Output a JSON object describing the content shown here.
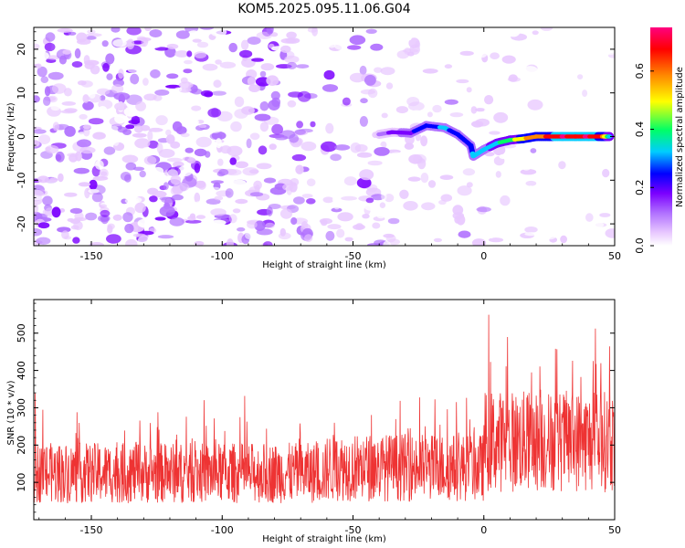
{
  "figure": {
    "title": "KOM5.2025.095.11.06.G04"
  },
  "colors": {
    "snr_line": "#ee3333",
    "frame": "#000000",
    "background": "#ffffff"
  },
  "chart_data": [
    {
      "type": "heatmap",
      "name": "spectrogram",
      "xlabel": "Height of straight line (km)",
      "ylabel": "Frequency (Hz)",
      "xlim": [
        -172,
        50
      ],
      "ylim": [
        -25,
        25
      ],
      "x_ticks": [
        -150,
        -100,
        -50,
        0,
        50
      ],
      "y_ticks": [
        -20,
        -10,
        0,
        10,
        20
      ],
      "colorbar": {
        "label": "Normalized spectral amplitude",
        "range": [
          0,
          0.75
        ],
        "ticks": [
          0.0,
          0.2,
          0.4,
          0.6
        ],
        "colormap": [
          "#ffffff",
          "#e8c8ff",
          "#b070ff",
          "#7b00ff",
          "#0000ff",
          "#00ccff",
          "#00ff66",
          "#ffff00",
          "#ff8800",
          "#ff0000",
          "#ff0080"
        ]
      },
      "feature": {
        "description_free": false,
        "trace": [
          [
            -40,
            0.5
          ],
          [
            -35,
            1.0
          ],
          [
            -28,
            0.8
          ],
          [
            -22,
            2.5
          ],
          [
            -15,
            2.0
          ],
          [
            -10,
            0.5
          ],
          [
            -5,
            -2.0
          ],
          [
            -4,
            -4.5
          ],
          [
            0,
            -3.0
          ],
          [
            5,
            -1.5
          ],
          [
            10,
            -0.8
          ],
          [
            15,
            -0.5
          ],
          [
            20,
            0.0
          ],
          [
            25,
            0.0
          ],
          [
            30,
            0.0
          ],
          [
            35,
            0.0
          ],
          [
            40,
            0.0
          ],
          [
            45,
            0.0
          ],
          [
            48,
            0.0
          ]
        ],
        "trace_amplitude": [
          0.15,
          0.2,
          0.25,
          0.3,
          0.35,
          0.3,
          0.3,
          0.35,
          0.35,
          0.4,
          0.45,
          0.55,
          0.6,
          0.65,
          0.72,
          0.7,
          0.72,
          0.65,
          0.4
        ]
      }
    },
    {
      "type": "line",
      "name": "snr",
      "xlabel": "Height of straight line (km)",
      "ylabel": "SNR (10 * v/v)",
      "xlim": [
        -172,
        50
      ],
      "ylim": [
        0,
        590
      ],
      "x_ticks": [
        -150,
        -100,
        -50,
        0,
        50
      ],
      "y_ticks": [
        100,
        200,
        300,
        400,
        500
      ],
      "series": [
        {
          "segments_km": [
            [
              -172,
              -60
            ],
            [
              -60,
              0
            ],
            [
              0,
              50
            ]
          ],
          "mean_snr": [
            125,
            140,
            210
          ],
          "max_snr": [
            340,
            330,
            590
          ]
        }
      ]
    }
  ]
}
